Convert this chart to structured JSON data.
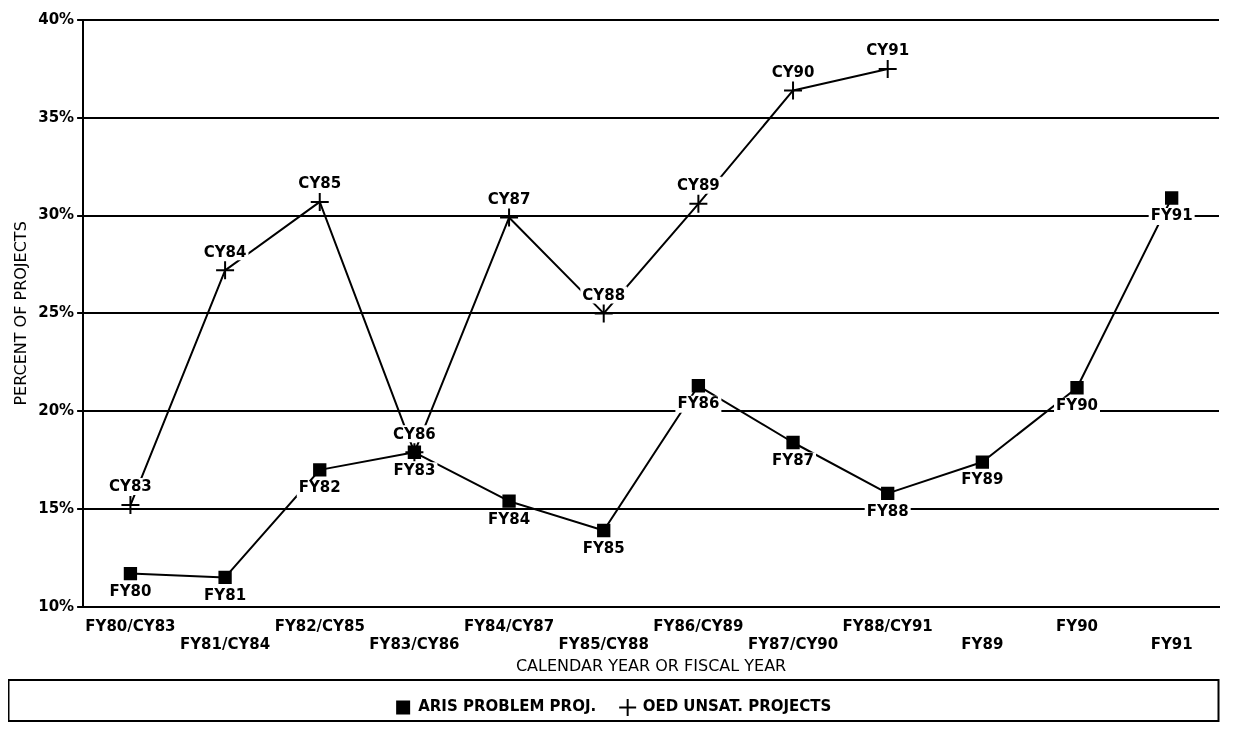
{
  "chart_data": {
    "type": "line",
    "xlabel": "CALENDAR YEAR OR FISCAL YEAR",
    "ylabel": "PERCENT OF PROJECTS",
    "categories": [
      "FY80/CY83",
      "FY81/CY84",
      "FY82/CY85",
      "FY83/CY86",
      "FY84/CY87",
      "FY85/CY88",
      "FY86/CY89",
      "FY87/CY90",
      "FY88/CY91",
      "FY89",
      "FY90",
      "FY91"
    ],
    "series": [
      {
        "name": "ARIS PROBLEM PROJ.",
        "color": "#000000",
        "marker": "square",
        "values": [
          11.7,
          11.5,
          17.0,
          17.9,
          15.4,
          13.9,
          21.3,
          18.4,
          15.8,
          17.4,
          21.2,
          30.9
        ],
        "value_labels": [
          "FY80",
          "FY81",
          "FY82",
          "FY83",
          "FY84",
          "FY85",
          "FY86",
          "FY87",
          "FY88",
          "FY89",
          "FY90",
          "FY91"
        ]
      },
      {
        "name": "OED UNSAT. PROJECTS",
        "color": "#000000",
        "marker": "cross",
        "values": [
          15.2,
          27.2,
          30.7,
          17.9,
          29.9,
          25.0,
          30.6,
          36.4,
          37.5,
          null,
          null,
          null
        ],
        "value_labels": [
          "CY83",
          "CY84",
          "CY85",
          "CY86",
          "CY87",
          "CY88",
          "CY89",
          "CY90",
          "CY91",
          null,
          null,
          null
        ]
      }
    ],
    "ylim": [
      10,
      40
    ],
    "yticks": [
      {
        "value": 10,
        "label": "10%"
      },
      {
        "value": 15,
        "label": "15%"
      },
      {
        "value": 20,
        "label": "20%"
      },
      {
        "value": 25,
        "label": "25%"
      },
      {
        "value": 30,
        "label": "30%"
      },
      {
        "value": 35,
        "label": "35%"
      },
      {
        "value": 40,
        "label": "40%"
      }
    ],
    "grid": "y",
    "legend": "bottom",
    "line_style": "solid"
  }
}
